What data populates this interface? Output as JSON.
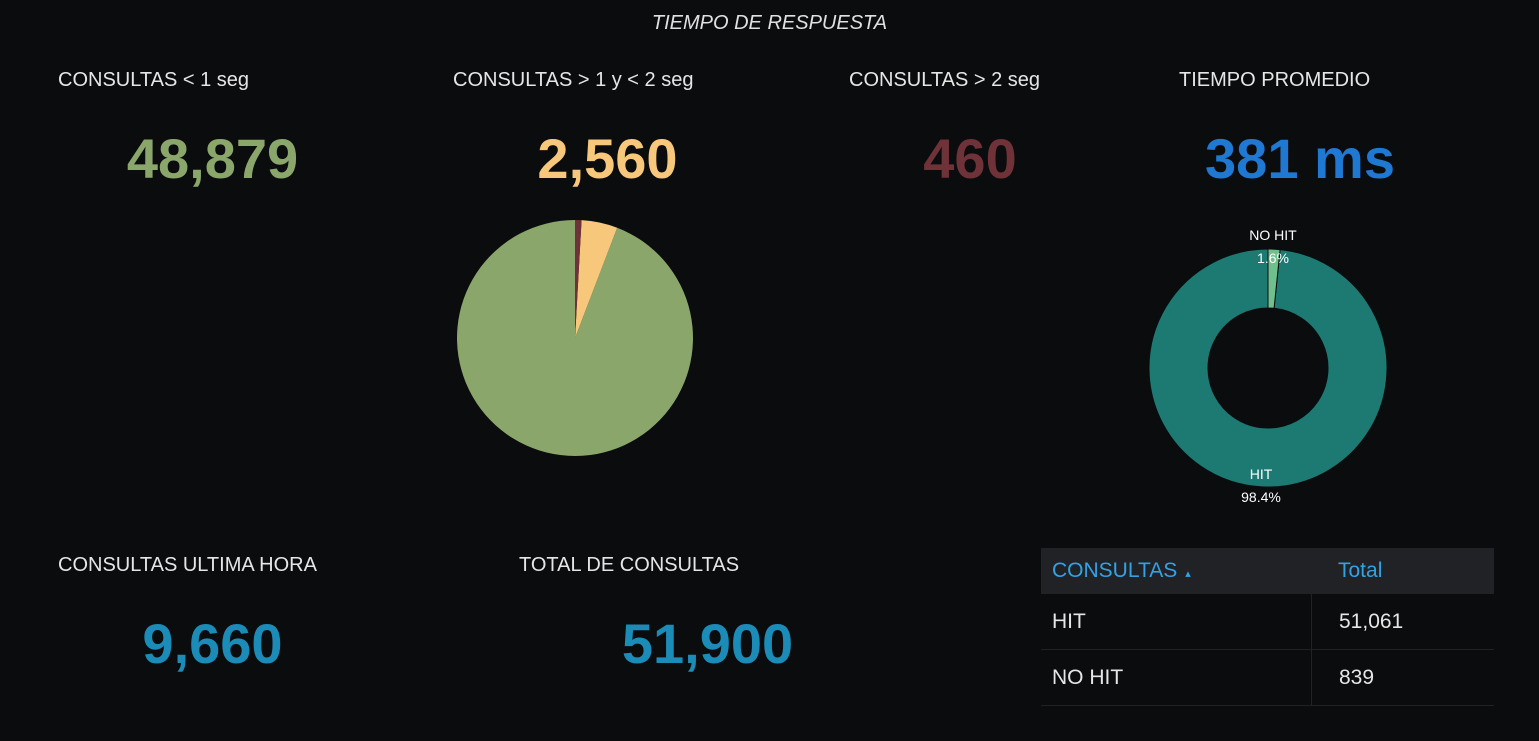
{
  "row_title": "TIEMPO DE RESPUESTA",
  "colors": {
    "green": "#8aa66a",
    "yellow": "#f7c87b",
    "red": "#6e3238",
    "blue": "#1f78d1",
    "cyan": "#1b8bb7",
    "teal": "#1d7a73",
    "light_green": "#6fc08c"
  },
  "panels": {
    "fast": {
      "title": "CONSULTAS < 1 seg",
      "value": "48,879"
    },
    "medium": {
      "title": "CONSULTAS > 1 y < 2 seg",
      "value": "2,560"
    },
    "slow": {
      "title": "CONSULTAS > 2 seg",
      "value": "460"
    },
    "avg": {
      "title": "TIEMPO PROMEDIO",
      "value": "381 ms"
    },
    "last_hour": {
      "title": "CONSULTAS ULTIMA HORA",
      "value": "9,660"
    },
    "total": {
      "title": "TOTAL DE CONSULTAS",
      "value": "51,900"
    }
  },
  "chart_data": [
    {
      "type": "pie",
      "categories": [
        "CONSULTAS < 1 seg",
        "CONSULTAS > 1 y < 2 seg",
        "CONSULTAS > 2 seg"
      ],
      "values": [
        48879,
        2560,
        460
      ],
      "colors": [
        "#8aa66a",
        "#f7c87b",
        "#6e3238"
      ]
    },
    {
      "type": "pie",
      "donut": true,
      "categories": [
        "HIT",
        "NO HIT"
      ],
      "values": [
        51061,
        839
      ],
      "percent_labels": [
        "98.4%",
        "1.6%"
      ],
      "colors": [
        "#1d7a73",
        "#6fc08c"
      ]
    }
  ],
  "table": {
    "headers": [
      "CONSULTAS",
      "Total"
    ],
    "sort_icon": "sort-ascending-icon",
    "rows": [
      {
        "name": "HIT",
        "total": "51,061"
      },
      {
        "name": "NO HIT",
        "total": "839"
      }
    ]
  }
}
